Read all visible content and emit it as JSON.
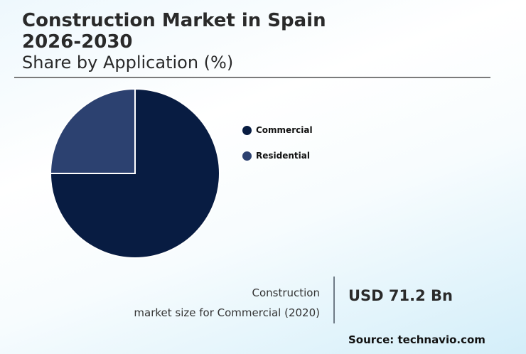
{
  "header": {
    "title_line1": "Construction Market in Spain",
    "title_line2": "2026-2030",
    "subtitle": "Share by Application (%)"
  },
  "legend": [
    {
      "label": "Commercial",
      "color": "#081c42"
    },
    {
      "label": "Residential",
      "color": "#2c4170"
    }
  ],
  "stat": {
    "label_line1": "Construction",
    "label_line2": "market size for Commercial (2020)",
    "value": "USD 71.2 Bn"
  },
  "source": "Source: technavio.com",
  "chart_data": {
    "type": "pie",
    "title": "Construction Market in Spain 2026-2030",
    "subtitle": "Share by Application (%)",
    "categories": [
      "Commercial",
      "Residential"
    ],
    "values": [
      75,
      25
    ],
    "colors": [
      "#081c42",
      "#2c4170"
    ],
    "legend_position": "right",
    "annotation": "Construction market size for Commercial (2020): USD 71.2 Bn"
  }
}
